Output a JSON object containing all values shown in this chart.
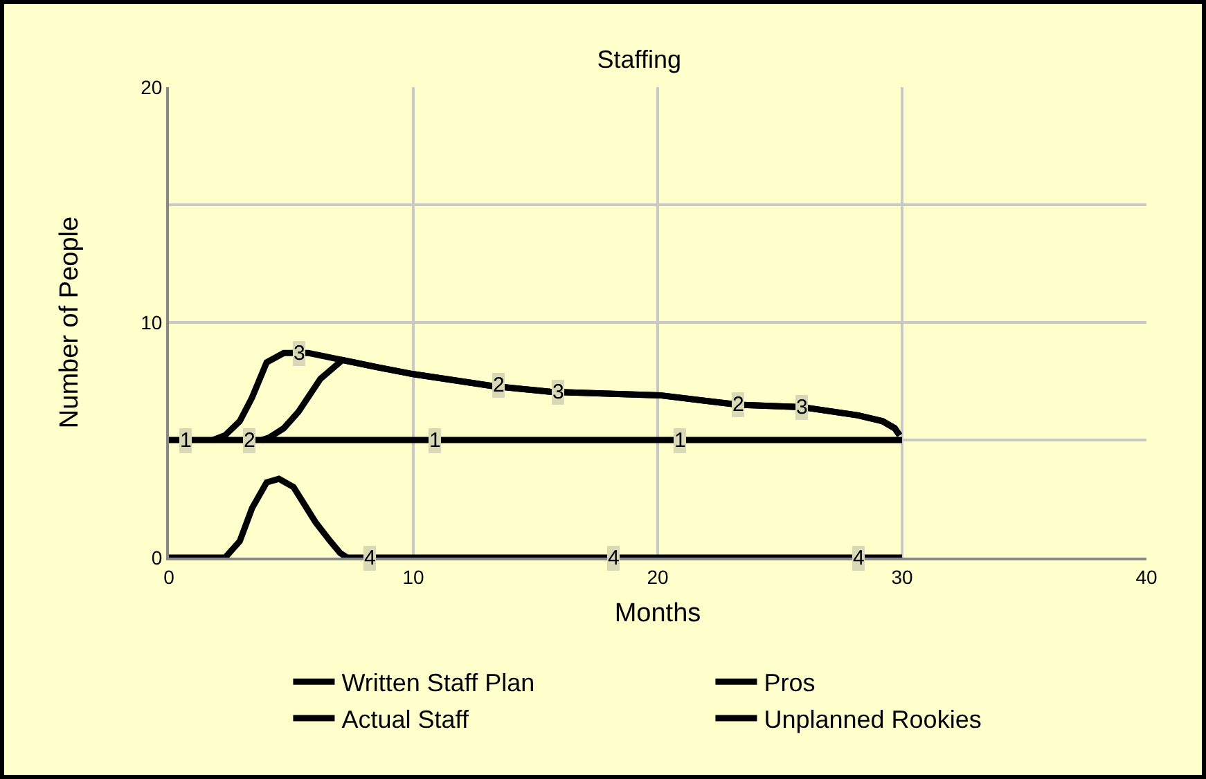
{
  "chart_data": {
    "type": "line",
    "title": "Staffing",
    "xlabel": "Months",
    "ylabel": "Number of People",
    "xlim": [
      0,
      40
    ],
    "xticks": [
      0,
      10,
      20,
      30,
      40
    ],
    "ylim": [
      0,
      20
    ],
    "yticks": [
      0,
      {
        "value": 5,
        "label": null
      },
      10,
      {
        "value": 15,
        "label": null
      },
      20
    ],
    "grid": true,
    "legend": "bottom",
    "marker": "none",
    "line_style": "solid",
    "series": [
      {
        "name": "Written Staff Plan",
        "color": "#000000",
        "x": [
          0,
          10,
          20,
          30
        ],
        "values": [
          5,
          5,
          5,
          5
        ]
      },
      {
        "name": "Pros",
        "color": "#000000",
        "x": [
          3.8,
          4.1,
          4.7,
          5.3,
          6.2,
          7.1,
          8.5,
          10,
          13.2,
          15.6,
          20.1,
          23.3,
          25.9,
          28.2,
          29.2,
          29.7,
          29.9
        ],
        "values": [
          5,
          5.1,
          5.5,
          6.2,
          7.6,
          8.4,
          8.1,
          7.8,
          7.3,
          7.05,
          6.9,
          6.5,
          6.4,
          6.05,
          5.8,
          5.5,
          5.2
        ]
      },
      {
        "name": "Actual Staff",
        "color": "#000000",
        "x": [
          1.8,
          2.3,
          2.9,
          3.4,
          4.0,
          4.7,
          5.7,
          7.1,
          8.5,
          10,
          13.2,
          15.6,
          20.1,
          23.3,
          25.9,
          28.2,
          29.2,
          29.7,
          29.9
        ],
        "values": [
          5,
          5.2,
          5.8,
          6.8,
          8.3,
          8.7,
          8.7,
          8.4,
          8.1,
          7.8,
          7.3,
          7.05,
          6.9,
          6.5,
          6.4,
          6.05,
          5.8,
          5.5,
          5.2
        ]
      },
      {
        "name": "Unplanned Rookies",
        "color": "#000000",
        "x": [
          0,
          2.3,
          2.9,
          3.4,
          4.0,
          4.5,
          5.1,
          6.0,
          6.6,
          7.0,
          7.3,
          30
        ],
        "values": [
          0,
          0,
          0.7,
          2.1,
          3.2,
          3.35,
          3.0,
          1.5,
          0.7,
          0.2,
          0,
          0
        ]
      }
    ],
    "annotations": [
      {
        "text": "1",
        "x": 0.7,
        "y": 5
      },
      {
        "text": "2",
        "x": 3.3,
        "y": 5
      },
      {
        "text": "1",
        "x": 10.9,
        "y": 5
      },
      {
        "text": "1",
        "x": 20.9,
        "y": 5
      },
      {
        "text": "3",
        "x": 5.3,
        "y": 8.7
      },
      {
        "text": "2",
        "x": 13.5,
        "y": 7.3
      },
      {
        "text": "3",
        "x": 15.9,
        "y": 7.05
      },
      {
        "text": "2",
        "x": 23.3,
        "y": 6.5
      },
      {
        "text": "3",
        "x": 25.9,
        "y": 6.4
      },
      {
        "text": "4",
        "x": 8.2,
        "y": 0
      },
      {
        "text": "4",
        "x": 18.2,
        "y": 0
      },
      {
        "text": "4",
        "x": 28.2,
        "y": 0
      }
    ]
  }
}
